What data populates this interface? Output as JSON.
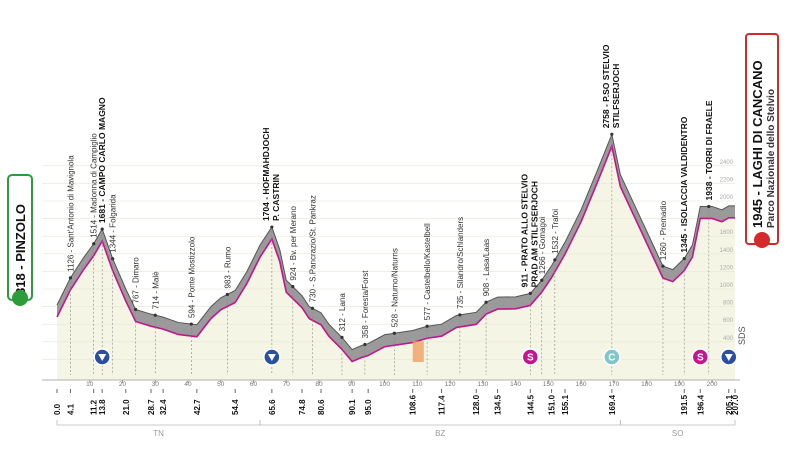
{
  "chart_data": {
    "type": "area",
    "start": {
      "label": "818 - PINZOLO",
      "color": "#2a9d3a"
    },
    "finish": {
      "label": "1945 - LAGHI DI CANCANO",
      "sublabel": "Parco Nazionale dello Stelvio",
      "color": "#d42a2a"
    },
    "logo": "SDS",
    "x": [
      0,
      4.1,
      8,
      11.2,
      13.8,
      17,
      21,
      24,
      28.7,
      32.4,
      37,
      42.7,
      47,
      50,
      54.4,
      58,
      62,
      65.6,
      68,
      70,
      74.8,
      77,
      80.6,
      83,
      87,
      90.1,
      93,
      95,
      100,
      108.6,
      113,
      117.4,
      122,
      128,
      131,
      134.5,
      140,
      144.5,
      148,
      151,
      155.1,
      160,
      165,
      169.4,
      172,
      177,
      182,
      185,
      188,
      191.5,
      194,
      196.4,
      200,
      203,
      205.1,
      207
    ],
    "values": [
      818,
      1126,
      1350,
      1514,
      1681,
      1344,
      1000,
      767,
      714,
      680,
      620,
      594,
      800,
      900,
      983,
      1200,
      1500,
      1704,
      1450,
      1100,
      924,
      800,
      730,
      600,
      450,
      312,
      358,
      380,
      480,
      528,
      577,
      600,
      700,
      735,
      850,
      908,
      911,
      950,
      1100,
      1266,
      1532,
      1900,
      2350,
      2758,
      2300,
      1900,
      1500,
      1260,
      1220,
      1345,
      1500,
      1938,
      1938,
      1900,
      1945,
      1945
    ],
    "xlim": [
      0,
      207
    ],
    "ylim": [
      0,
      3000
    ],
    "xticks": [
      10,
      20,
      30,
      40,
      50,
      60,
      70,
      80,
      90,
      100,
      110,
      120,
      130,
      140,
      150,
      160,
      170,
      180,
      190,
      200
    ],
    "yticks": [
      200,
      400,
      600,
      800,
      1000,
      1200,
      1400,
      1600,
      1800,
      2000,
      2200,
      2400
    ],
    "km_labels": [
      {
        "value": 0,
        "label": "0.0"
      },
      {
        "value": 4.1,
        "label": "4.1"
      },
      {
        "value": 11.2,
        "label": "11.2"
      },
      {
        "value": 13.8,
        "label": "13.8"
      },
      {
        "value": 21,
        "label": "21.0"
      },
      {
        "value": 28.7,
        "label": "28.7"
      },
      {
        "value": 32.4,
        "label": "32.4"
      },
      {
        "value": 42.7,
        "label": "42.7"
      },
      {
        "value": 54.4,
        "label": "54.4"
      },
      {
        "value": 65.6,
        "label": "65.6"
      },
      {
        "value": 74.8,
        "label": "74.8"
      },
      {
        "value": 80.6,
        "label": "80.6"
      },
      {
        "value": 90.1,
        "label": "90.1"
      },
      {
        "value": 95,
        "label": "95.0"
      },
      {
        "value": 108.6,
        "label": "108.6"
      },
      {
        "value": 117.4,
        "label": "117.4"
      },
      {
        "value": 128,
        "label": "128.0"
      },
      {
        "value": 134.5,
        "label": "134.5"
      },
      {
        "value": 144.5,
        "label": "144.5"
      },
      {
        "value": 151,
        "label": "151.0"
      },
      {
        "value": 155.1,
        "label": "155.1"
      },
      {
        "value": 169.4,
        "label": "169.4"
      },
      {
        "value": 191.5,
        "label": "191.5"
      },
      {
        "value": 196.4,
        "label": "196.4"
      },
      {
        "value": 205.1,
        "label": "205.1"
      },
      {
        "value": 207,
        "label": "207.0"
      }
    ],
    "waypoints": [
      {
        "km": 4.1,
        "label": "1126 - Sant'Antonio di Mavignola"
      },
      {
        "km": 11.2,
        "label": "1514 - Madonna di Campiglio"
      },
      {
        "km": 13.8,
        "label": "1681 - CAMPO CARLO MAGNO",
        "bold": true
      },
      {
        "km": 17,
        "label": "1344 - Folgarida"
      },
      {
        "km": 24,
        "label": "767 - Dimaro"
      },
      {
        "km": 30,
        "label": "714 - Malè"
      },
      {
        "km": 41,
        "label": "594 - Ponte Mostizzolo"
      },
      {
        "km": 52,
        "label": "983 - Rumo"
      },
      {
        "km": 65.6,
        "label": "1704 - HOFMAHDJOCH",
        "label2": "P. CASTRIN",
        "bold": true
      },
      {
        "km": 72,
        "label": "924 - Bv. per Merano"
      },
      {
        "km": 78,
        "label": "730 - S.Pancrazio/St. Pankraz"
      },
      {
        "km": 87,
        "label": "312 - Lana"
      },
      {
        "km": 94,
        "label": "358 - Foresta/Forst"
      },
      {
        "km": 103,
        "label": "528 - Naturno/Naturns"
      },
      {
        "km": 113,
        "label": "577 - Castelbello/Kastelbell"
      },
      {
        "km": 123,
        "label": "735 - Silandro/Schlanders"
      },
      {
        "km": 131,
        "label": "908 - Lasa/Laas"
      },
      {
        "km": 144.5,
        "label": "911 - PRATO ALLO STELVIO",
        "label2": "PRAD AM STILFSERJOCH",
        "bold": true
      },
      {
        "km": 148,
        "label": "1266 - Gomagoi"
      },
      {
        "km": 152,
        "label": "1532 - Trafoi"
      },
      {
        "km": 169.4,
        "label": "2758 - P.SO STELVIO",
        "label2": "STILFSERJOCH",
        "bold": true
      },
      {
        "km": 185,
        "label": "1260 - Premadio"
      },
      {
        "km": 191.5,
        "label": "1345 - ISOLACCIA VALDIDENTRO",
        "bold": true
      },
      {
        "km": 199,
        "label": "1938 - TORRI DI FRAELE",
        "bold": true
      }
    ],
    "markers": [
      {
        "km": 13.8,
        "kind": "triangle",
        "color": "#2b4fa0"
      },
      {
        "km": 65.6,
        "kind": "triangle",
        "color": "#2b4fa0"
      },
      {
        "km": 144.5,
        "kind": "circle",
        "label": "S",
        "color": "#c4168c"
      },
      {
        "km": 169.4,
        "kind": "circle",
        "label": "C",
        "color": "#7fc5c9"
      },
      {
        "km": 196.4,
        "kind": "circle",
        "label": "S",
        "color": "#c4168c"
      },
      {
        "km": 205.1,
        "kind": "triangle",
        "color": "#2b4fa0"
      }
    ],
    "regions": [
      {
        "label": "TN",
        "from": 0,
        "to": 62
      },
      {
        "label": "BZ",
        "from": 62,
        "to": 172
      },
      {
        "label": "SO",
        "from": 172,
        "to": 207
      }
    ]
  }
}
